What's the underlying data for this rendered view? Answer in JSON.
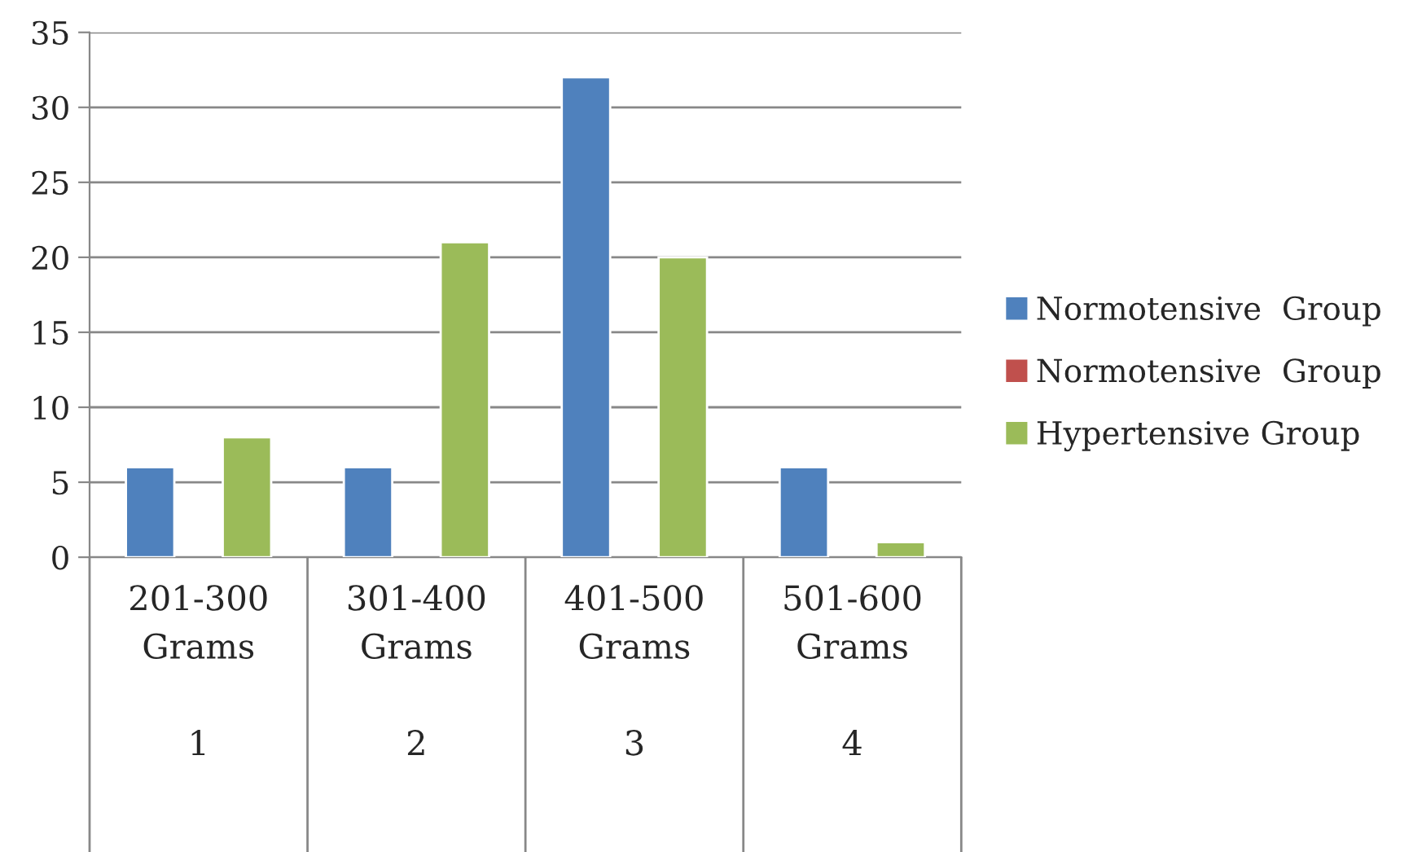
{
  "chart_data": {
    "type": "bar",
    "categories": [
      "201-300\nGrams\n\n1",
      "301-400\nGrams\n\n2",
      "401-500\nGrams\n\n3",
      "501-600\nGrams\n\n4"
    ],
    "series": [
      {
        "name": "Normotensive  Group",
        "color": "#4f81bd",
        "values": [
          6,
          6,
          32,
          6
        ]
      },
      {
        "name": "Normotensive  Group",
        "color": "#c0504d",
        "values": [
          null,
          null,
          null,
          null
        ]
      },
      {
        "name": "Hypertensive Group",
        "color": "#9bbb59",
        "values": [
          8,
          21,
          20,
          1
        ]
      }
    ],
    "ylim": [
      0,
      35
    ],
    "yticks": [
      0,
      5,
      10,
      15,
      20,
      25,
      30,
      35
    ],
    "grid": "y",
    "legend": "right"
  }
}
